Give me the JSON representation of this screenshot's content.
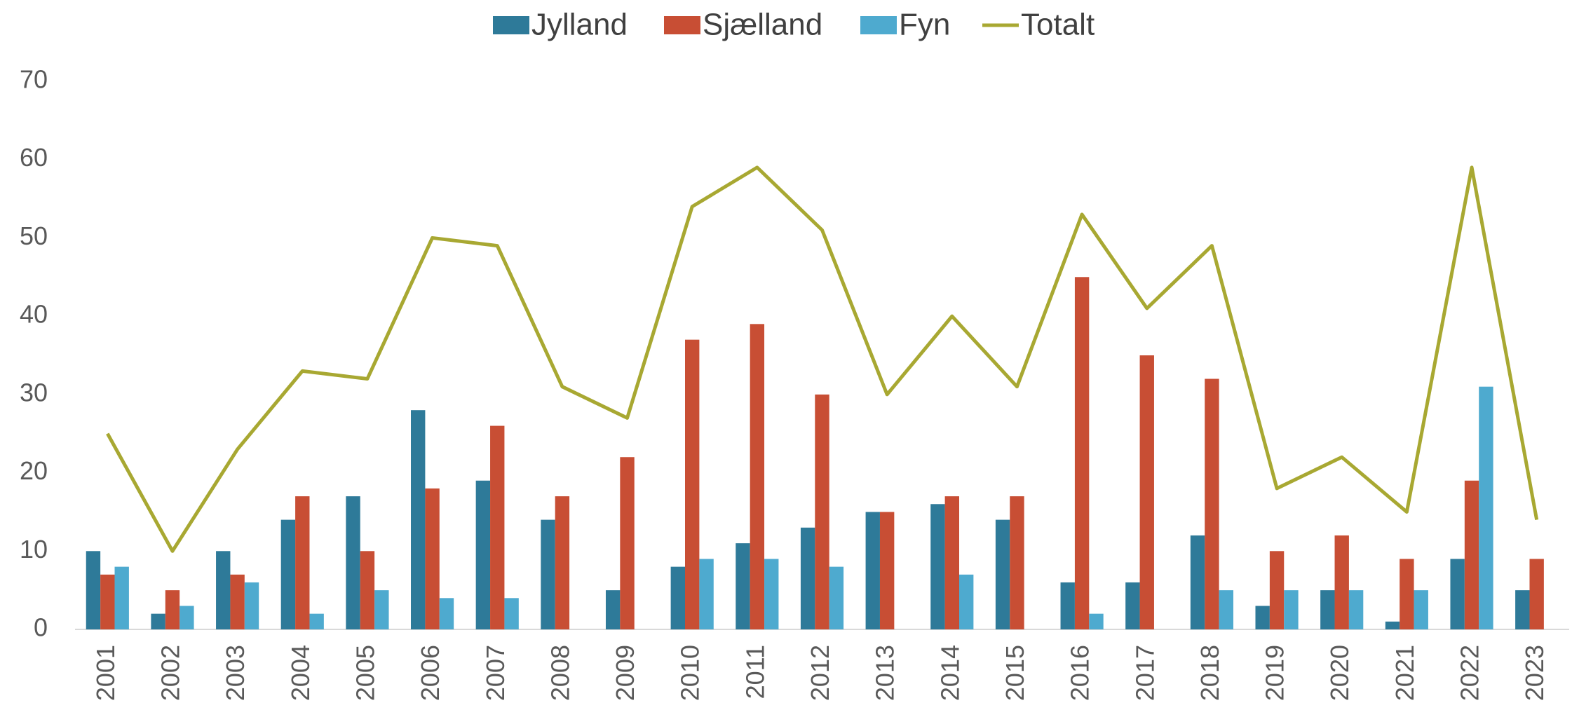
{
  "chart_data": {
    "type": "bar_line",
    "categories": [
      "2001",
      "2002",
      "2003",
      "2004",
      "2005",
      "2006",
      "2007",
      "2008",
      "2009",
      "2010",
      "2011",
      "2012",
      "2013",
      "2014",
      "2015",
      "2016",
      "2017",
      "2018",
      "2019",
      "2020",
      "2021",
      "2022",
      "2023"
    ],
    "series": [
      {
        "name": "Jylland",
        "color": "#2e7a99",
        "type": "bar",
        "values": [
          10,
          2,
          10,
          14,
          17,
          28,
          19,
          14,
          5,
          8,
          11,
          13,
          15,
          16,
          14,
          6,
          6,
          12,
          3,
          5,
          1,
          9,
          5
        ]
      },
      {
        "name": "Sjælland",
        "color": "#c84e34",
        "type": "bar",
        "values": [
          7,
          5,
          7,
          17,
          10,
          18,
          26,
          17,
          22,
          37,
          39,
          30,
          15,
          17,
          17,
          45,
          35,
          32,
          10,
          12,
          9,
          19,
          9
        ]
      },
      {
        "name": "Fyn",
        "color": "#4eaacf",
        "type": "bar",
        "values": [
          8,
          3,
          6,
          2,
          5,
          4,
          4,
          0,
          0,
          9,
          9,
          8,
          0,
          7,
          0,
          2,
          0,
          5,
          5,
          5,
          5,
          31,
          0
        ]
      },
      {
        "name": "Totalt",
        "color": "#a8a832",
        "type": "line",
        "values": [
          25,
          10,
          23,
          33,
          32,
          50,
          49,
          31,
          27,
          54,
          59,
          51,
          30,
          40,
          31,
          53,
          41,
          49,
          18,
          22,
          15,
          59,
          14
        ]
      }
    ],
    "ylim": [
      0,
      70
    ],
    "yticks": [
      0,
      10,
      20,
      30,
      40,
      50,
      60,
      70
    ],
    "grid": false,
    "legend": "top"
  }
}
